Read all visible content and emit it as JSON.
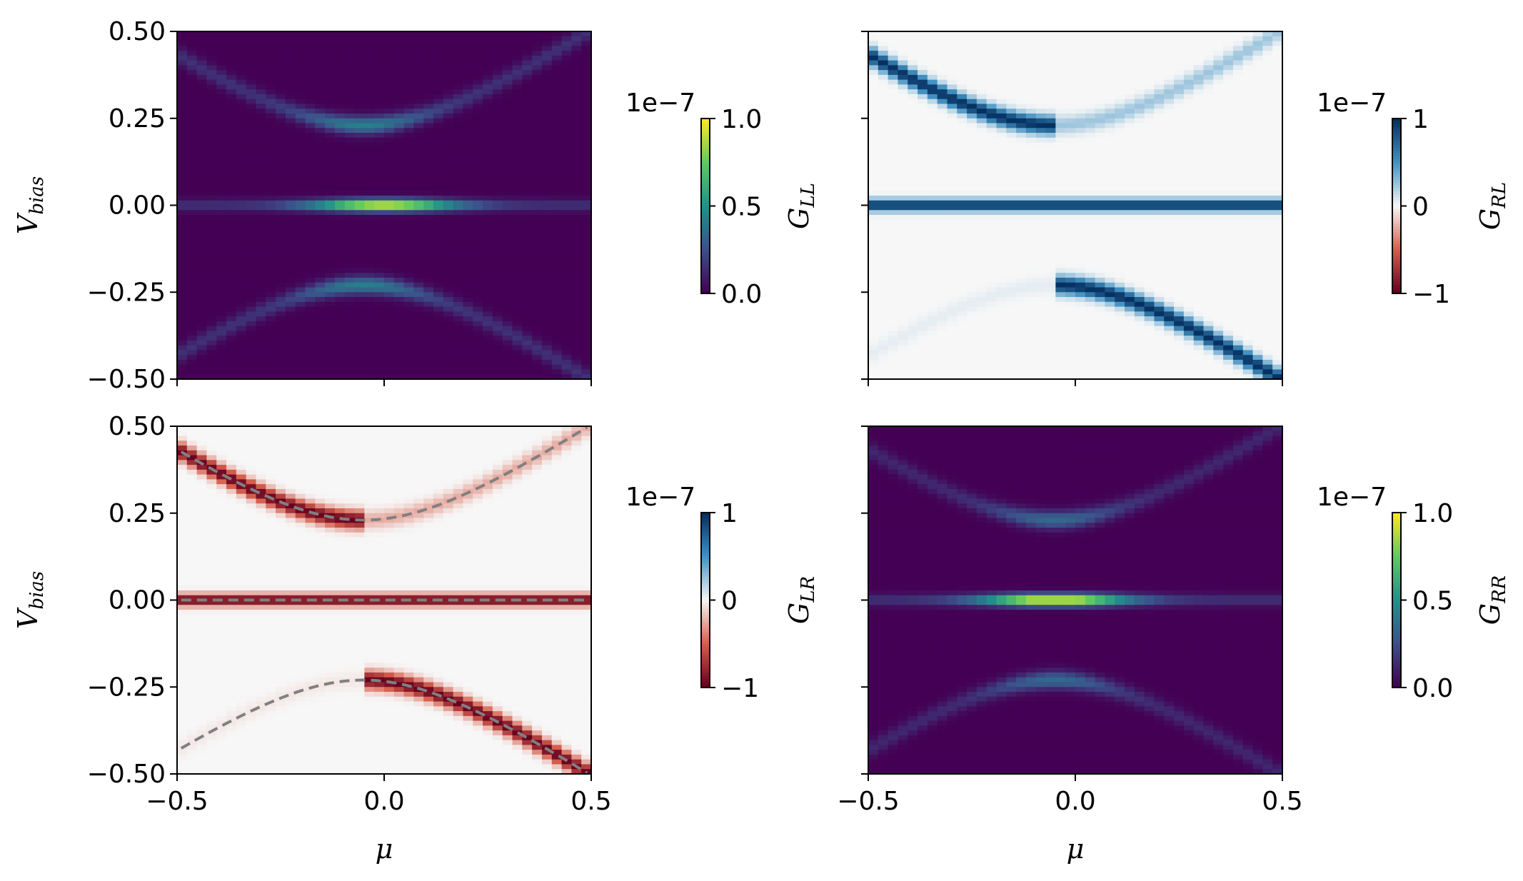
{
  "chart_data": [
    {
      "type": "heatmap",
      "panel": "top-left",
      "colormap": "viridis",
      "xlim": [
        -0.5,
        0.5
      ],
      "ylim": [
        -0.5,
        0.5
      ],
      "xticks": [
        "",
        "",
        ""
      ],
      "yticks": [
        "0.50",
        "0.25",
        "0.00",
        "−0.25",
        "−0.50"
      ],
      "xlabel": "",
      "ylabel": "V_bias",
      "colorbar": {
        "label": "G_LL",
        "offset": "1e−7",
        "ticks": [
          "1.0",
          "0.5",
          "0.0"
        ],
        "range": [
          0.0,
          1.0
        ]
      },
      "features": {
        "zero_bias_peak": 0.85,
        "gap_at_mu0": 0.23,
        "branch_a": 0.2,
        "branch_b": 0.2,
        "branch_min_mu": -0.05
      },
      "dashed_overlay": false
    },
    {
      "type": "heatmap",
      "panel": "top-right",
      "colormap": "RdBu",
      "xlim": [
        -0.5,
        0.5
      ],
      "ylim": [
        -0.5,
        0.5
      ],
      "xticks": [
        "",
        "",
        ""
      ],
      "yticks": [
        "",
        "",
        "",
        "",
        ""
      ],
      "xlabel": "",
      "ylabel": "",
      "colorbar": {
        "label": "G_RL",
        "offset": "1e−7",
        "ticks": [
          "1",
          "0",
          "−1"
        ],
        "range": [
          -1,
          1
        ]
      },
      "features": {
        "zero_bias_value": 1.0,
        "gap_at_mu0": 0.23,
        "branch_a": 0.2,
        "branch_b": 0.2,
        "branch_min_mu": -0.05
      },
      "dashed_overlay": false
    },
    {
      "type": "heatmap",
      "panel": "bottom-left",
      "colormap": "RdBu",
      "xlim": [
        -0.5,
        0.5
      ],
      "ylim": [
        -0.5,
        0.5
      ],
      "xticks": [
        "−0.5",
        "0.0",
        "0.5"
      ],
      "yticks": [
        "0.50",
        "0.25",
        "0.00",
        "−0.25",
        "−0.50"
      ],
      "xlabel": "μ",
      "ylabel": "V_bias",
      "colorbar": {
        "label": "G_LR",
        "offset": "1e−7",
        "ticks": [
          "1",
          "0",
          "−1"
        ],
        "range": [
          -1,
          1
        ]
      },
      "features": {
        "zero_bias_value": -1.0,
        "gap_at_mu0": 0.23,
        "branch_a": 0.2,
        "branch_b": 0.2,
        "branch_min_mu": -0.05
      },
      "dashed_overlay": true
    },
    {
      "type": "heatmap",
      "panel": "bottom-right",
      "colormap": "viridis",
      "xlim": [
        -0.5,
        0.5
      ],
      "ylim": [
        -0.5,
        0.5
      ],
      "xticks": [
        "−0.5",
        "0.0",
        "0.5"
      ],
      "yticks": [
        "",
        "",
        "",
        "",
        ""
      ],
      "xlabel": "μ",
      "ylabel": "",
      "colorbar": {
        "label": "G_RR",
        "offset": "1e−7",
        "ticks": [
          "1.0",
          "0.5",
          "0.0"
        ],
        "range": [
          0.0,
          1.0
        ]
      },
      "features": {
        "zero_bias_peak": 0.95,
        "gap_at_mu0": 0.23,
        "branch_a": 0.2,
        "branch_b": 0.2,
        "branch_min_mu": -0.05
      },
      "dashed_overlay": false
    }
  ],
  "colors": {
    "dashed_overlay": "#808080",
    "viridis_stops": [
      "#440154",
      "#3b528b",
      "#21918c",
      "#5ec962",
      "#fde725"
    ],
    "rdbu_stops": [
      "#67001f",
      "#d6604d",
      "#f7f7f7",
      "#4393c3",
      "#053061"
    ]
  }
}
